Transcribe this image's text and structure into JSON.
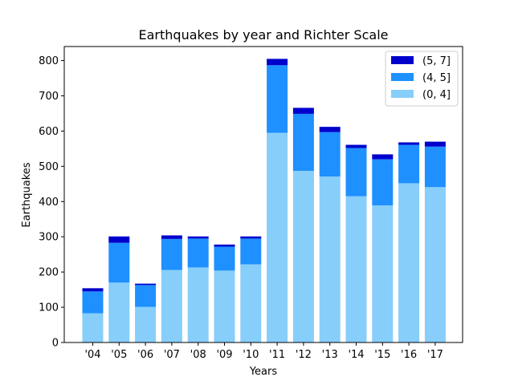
{
  "chart_data": {
    "type": "bar",
    "stacked": true,
    "title": "Earthquakes by year and Richter Scale",
    "xlabel": "Years",
    "ylabel": "Earthquakes",
    "ylim": [
      0,
      840
    ],
    "yticks": [
      0,
      100,
      200,
      300,
      400,
      500,
      600,
      700,
      800
    ],
    "categories": [
      "'04",
      "'05",
      "'06",
      "'07",
      "'08",
      "'09",
      "'10",
      "'11",
      "'12",
      "'13",
      "'14",
      "'15",
      "'16",
      "'17"
    ],
    "series": [
      {
        "name": "(0, 4]",
        "color": "#87cefa",
        "values": [
          83,
          170,
          101,
          206,
          213,
          204,
          222,
          595,
          487,
          471,
          415,
          389,
          452,
          441
        ]
      },
      {
        "name": "(4, 5]",
        "color": "#1e90ff",
        "values": [
          62,
          113,
          62,
          88,
          82,
          68,
          73,
          192,
          162,
          126,
          137,
          131,
          109,
          115
        ]
      },
      {
        "name": "(5, 7]",
        "color": "#0000cd",
        "values": [
          9,
          18,
          4,
          10,
          6,
          6,
          6,
          18,
          17,
          15,
          9,
          14,
          7,
          14
        ]
      }
    ],
    "legend_placement": "top-right",
    "grid": false
  }
}
